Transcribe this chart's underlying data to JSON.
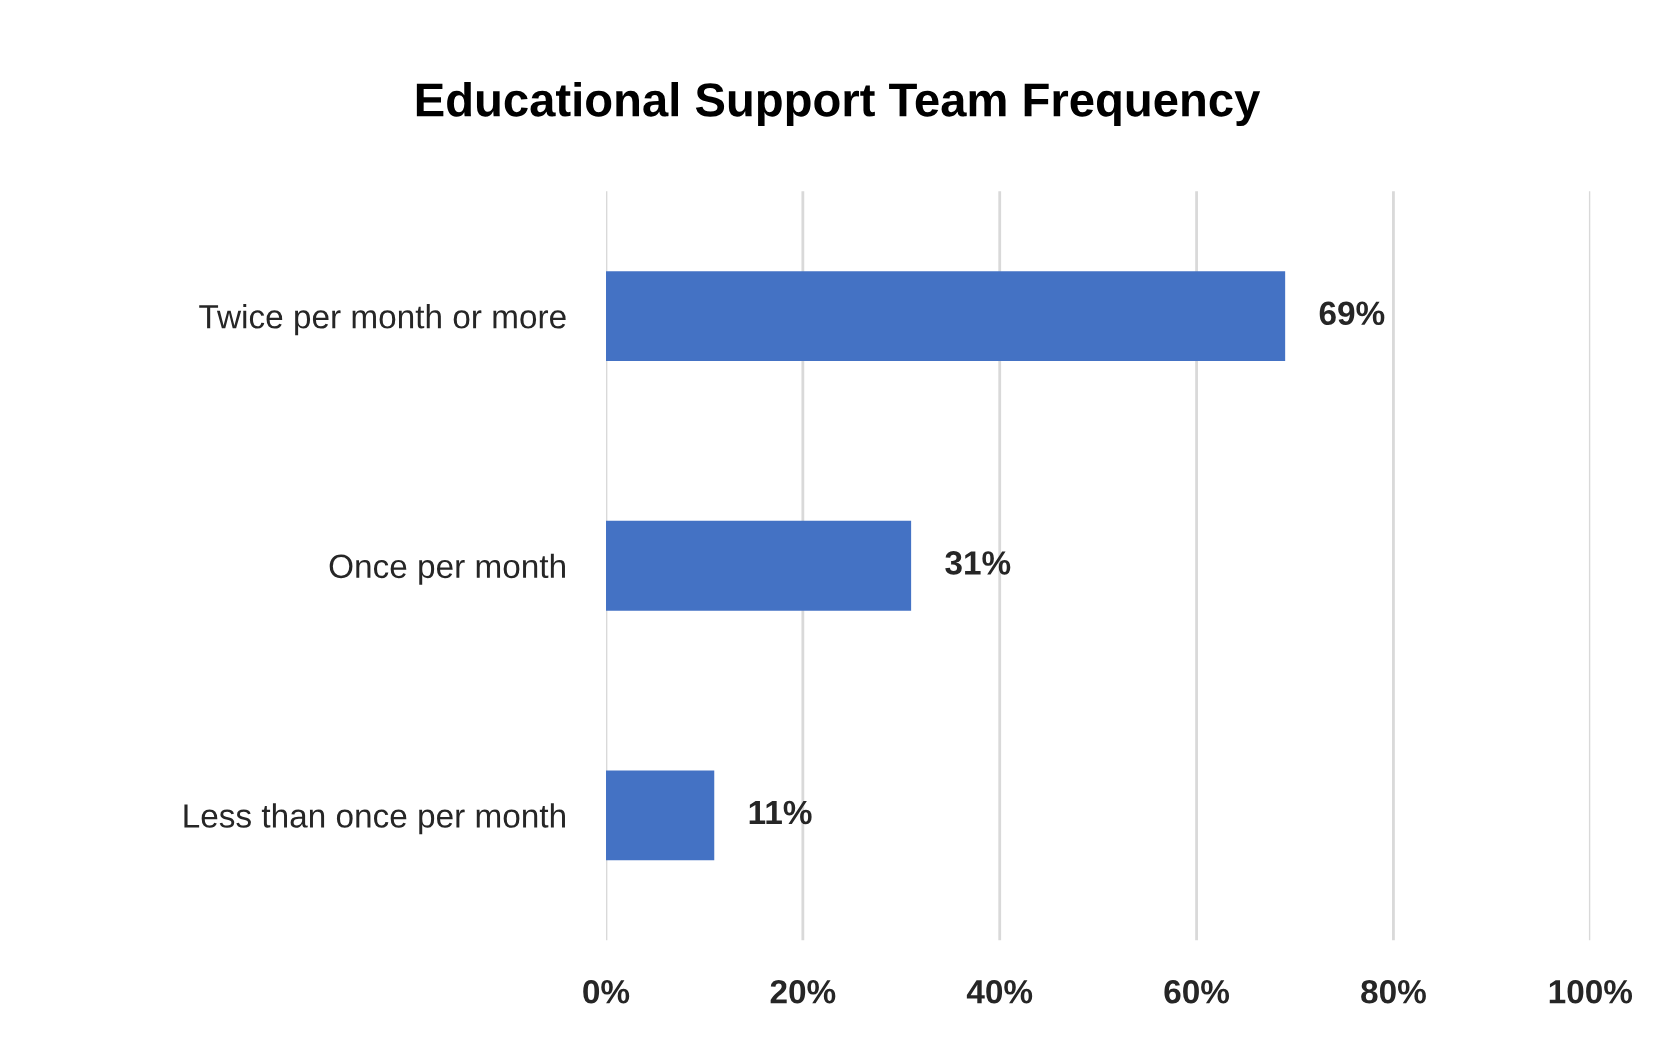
{
  "chart_data": {
    "type": "bar",
    "orientation": "horizontal",
    "title": "Educational Support Team Frequency",
    "categories": [
      "Twice per month or more",
      "Once per month",
      "Less than once per month"
    ],
    "values": [
      69,
      31,
      11
    ],
    "value_labels": [
      "69%",
      "31%",
      "11%"
    ],
    "color": "#4472c4",
    "xlim": [
      0,
      100
    ],
    "xticks": [
      {
        "value": 0,
        "label": "0%"
      },
      {
        "value": 20,
        "label": "20%"
      },
      {
        "value": 40,
        "label": "40%"
      },
      {
        "value": 60,
        "label": "60%"
      },
      {
        "value": 80,
        "label": "80%"
      },
      {
        "value": 100,
        "label": "100%"
      }
    ],
    "grid": "x"
  }
}
